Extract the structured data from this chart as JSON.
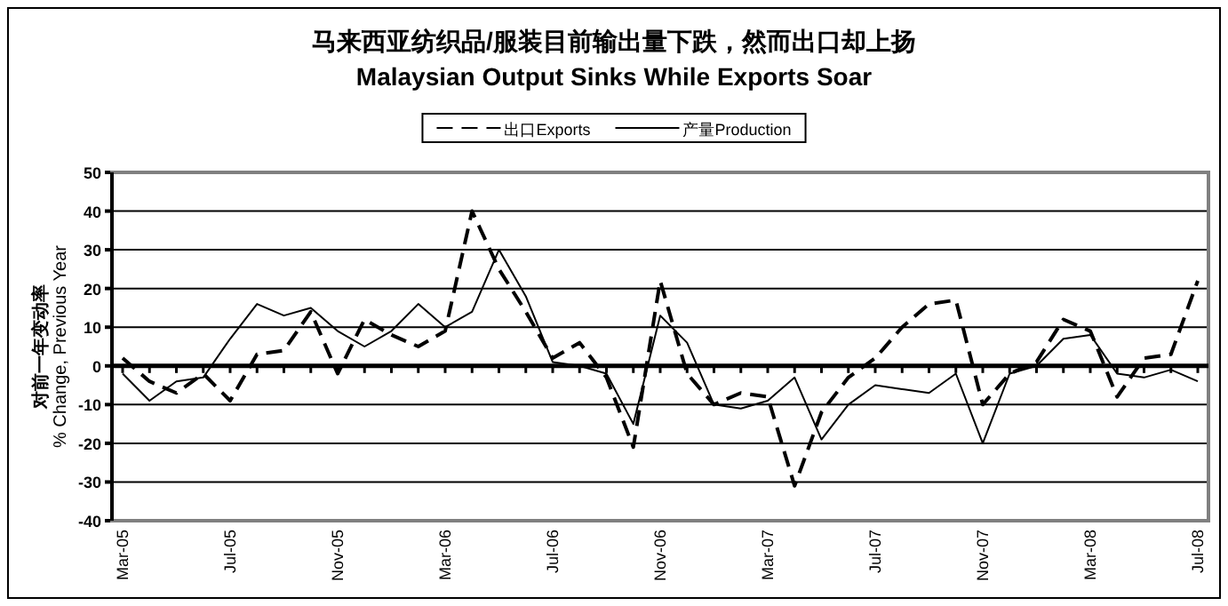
{
  "chart_data": {
    "type": "line",
    "title": "马来西亚纺织品/服装目前输出量下跌，然而出口却上扬",
    "subtitle": "Malaysian Output Sinks While Exports Soar",
    "ylabel": "对前一年变动率\n% Change, Previous Year",
    "categories": [
      "Mar-05",
      null,
      null,
      null,
      "Jul-05",
      null,
      null,
      null,
      "Nov-05",
      null,
      null,
      null,
      "Mar-06",
      null,
      null,
      null,
      "Jul-06",
      null,
      null,
      null,
      "Nov-06",
      null,
      null,
      null,
      "Mar-07",
      null,
      null,
      null,
      "Jul-07",
      null,
      null,
      null,
      "Nov-07",
      null,
      null,
      null,
      "Mar-08",
      null,
      null,
      null,
      "Jul-08"
    ],
    "series": [
      {
        "name": "出口Exports",
        "color": "#000000",
        "line_style": "dashed",
        "values": [
          2,
          -4,
          -7,
          -2,
          -9,
          3,
          4,
          14,
          -2,
          12,
          8,
          5,
          9,
          40,
          25,
          14,
          2,
          6,
          -3,
          -21,
          22,
          -2,
          -10,
          -7,
          -8,
          -31,
          -12,
          -3,
          2,
          10,
          16,
          17,
          -10,
          -2,
          1,
          12,
          9,
          -8,
          2,
          3,
          22
        ]
      },
      {
        "name": "产量Production",
        "color": "#000000",
        "line_style": "solid",
        "values": [
          -2,
          -9,
          -4,
          -3,
          7,
          16,
          13,
          15,
          9,
          5,
          9,
          16,
          10,
          14,
          30,
          18,
          1,
          0,
          -2,
          -15,
          13,
          6,
          -10,
          -11,
          -9,
          -3,
          -19,
          -10,
          -5,
          -6,
          -7,
          -2,
          -20,
          -2,
          0,
          7,
          8,
          -2,
          -3,
          -1,
          -4
        ]
      }
    ],
    "ylim": [
      -40,
      50
    ],
    "yticks": [
      -40,
      -30,
      -20,
      -10,
      0,
      10,
      20,
      30,
      40,
      50
    ],
    "grid": "y",
    "legend": "top"
  }
}
